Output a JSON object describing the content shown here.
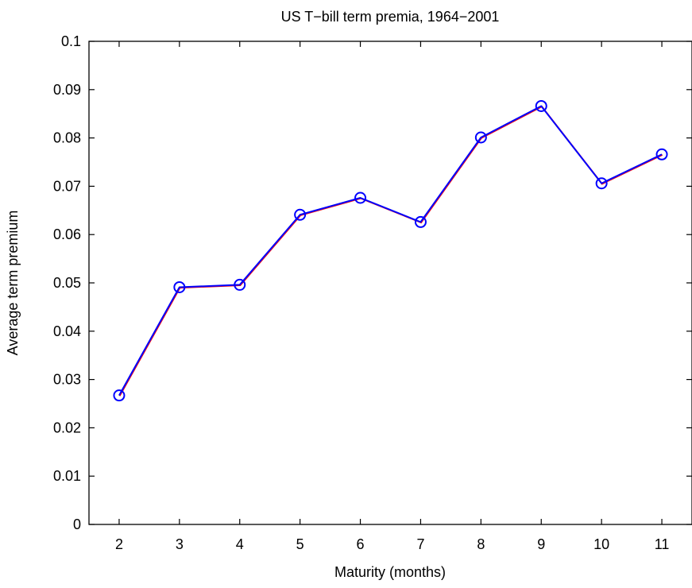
{
  "chart_data": {
    "type": "line",
    "title": "US T−bill term premia, 1964−2001",
    "xlabel": "Maturity (months)",
    "ylabel": "Average term premium",
    "xlim": [
      1.5,
      11.5
    ],
    "ylim": [
      0,
      0.1
    ],
    "xticks": [
      2,
      3,
      4,
      5,
      6,
      7,
      8,
      9,
      10,
      11
    ],
    "yticks": [
      0,
      0.01,
      0.02,
      0.03,
      0.04,
      0.05,
      0.06,
      0.07,
      0.08,
      0.09,
      0.1
    ],
    "xtick_labels": [
      "2",
      "3",
      "4",
      "5",
      "6",
      "7",
      "8",
      "9",
      "10",
      "11"
    ],
    "ytick_labels": [
      "0",
      "0.01",
      "0.02",
      "0.03",
      "0.04",
      "0.05",
      "0.06",
      "0.07",
      "0.08",
      "0.09",
      "0.1"
    ],
    "grid": false,
    "series": [
      {
        "x": [
          2,
          3,
          4,
          5,
          6,
          7,
          8,
          9,
          10,
          11
        ],
        "y": [
          0.0267,
          0.0491,
          0.0496,
          0.0641,
          0.0676,
          0.0626,
          0.0801,
          0.0866,
          0.0706,
          0.0766
        ],
        "color": "#0000ff",
        "marker": "circle",
        "secondary_color": "#ff0000"
      }
    ]
  }
}
